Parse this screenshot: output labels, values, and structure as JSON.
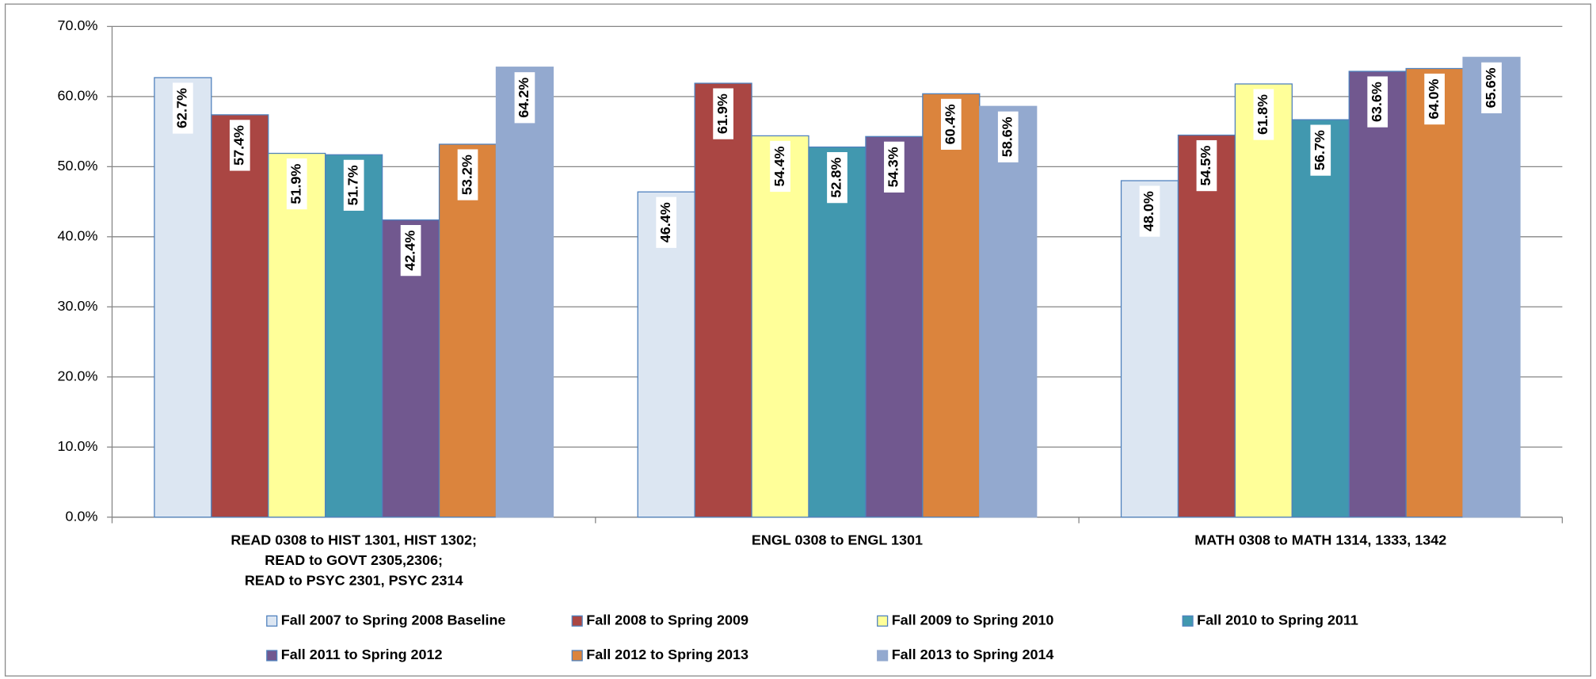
{
  "chart_data": {
    "type": "bar",
    "categories": [
      "READ 0308 to HIST 1301, HIST 1302;\nREAD to GOVT 2305,2306;\nREAD to PSYC 2301, PSYC 2314",
      "ENGL 0308 to ENGL 1301",
      "MATH 0308 to MATH 1314, 1333, 1342"
    ],
    "series": [
      {
        "name": "Fall 2007 to Spring 2008 Baseline",
        "color": "#dce6f2",
        "edge": "#4f81bd",
        "values": [
          62.7,
          46.4,
          48.0
        ],
        "value_labels": [
          "62.7%",
          "46.4%",
          "48.0%"
        ],
        "label_color": "#000000"
      },
      {
        "name": "Fall 2008 to Spring 2009",
        "color": "#aa4643",
        "edge": "#4f81bd",
        "values": [
          57.4,
          61.9,
          54.5
        ],
        "value_labels": [
          "57.4%",
          "61.9%",
          "54.5%"
        ],
        "label_color": "#000000"
      },
      {
        "name": "Fall 2009 to Spring 2010",
        "color": "#ffff99",
        "edge": "#4f81bd",
        "values": [
          51.9,
          54.4,
          61.8
        ],
        "value_labels": [
          "51.9%",
          "54.4%",
          "61.8%"
        ],
        "label_color": "#000000"
      },
      {
        "name": "Fall 2010 to Spring 2011",
        "color": "#4198af",
        "edge": "#4f81bd",
        "values": [
          51.7,
          52.8,
          56.7
        ],
        "value_labels": [
          "51.7%",
          "52.8%",
          "56.7%"
        ],
        "label_color": "#000000"
      },
      {
        "name": "Fall 2011 to Spring 2012",
        "color": "#71588f",
        "edge": "#4f81bd",
        "values": [
          42.4,
          54.3,
          63.6
        ],
        "value_labels": [
          "42.4%",
          "54.3%",
          "63.6%"
        ],
        "label_color": "#000000"
      },
      {
        "name": "Fall 2012 to Spring 2013",
        "color": "#db843d",
        "edge": "#4f81bd",
        "values": [
          53.2,
          60.4,
          64.0
        ],
        "value_labels": [
          "53.2%",
          "60.4%",
          "64.0%"
        ],
        "label_color": "#000000"
      },
      {
        "name": "Fall 2013 to Spring 2014",
        "color": "#93a9cf",
        "edge": "#93a9cf",
        "values": [
          64.2,
          58.6,
          65.6
        ],
        "value_labels": [
          "64.2%",
          "58.6%",
          "65.6%"
        ],
        "label_color": "#ff0000"
      }
    ],
    "ylim": [
      0,
      70
    ],
    "yticks": [
      {
        "value": 0,
        "label": "0.0%"
      },
      {
        "value": 10,
        "label": "10.0%"
      },
      {
        "value": 20,
        "label": "20.0%"
      },
      {
        "value": 30,
        "label": "30.0%"
      },
      {
        "value": 40,
        "label": "40.0%"
      },
      {
        "value": 50,
        "label": "50.0%"
      },
      {
        "value": 60,
        "label": "60.0%"
      },
      {
        "value": 70,
        "label": "70.0%"
      }
    ],
    "grid": true,
    "legend": "bottom"
  }
}
